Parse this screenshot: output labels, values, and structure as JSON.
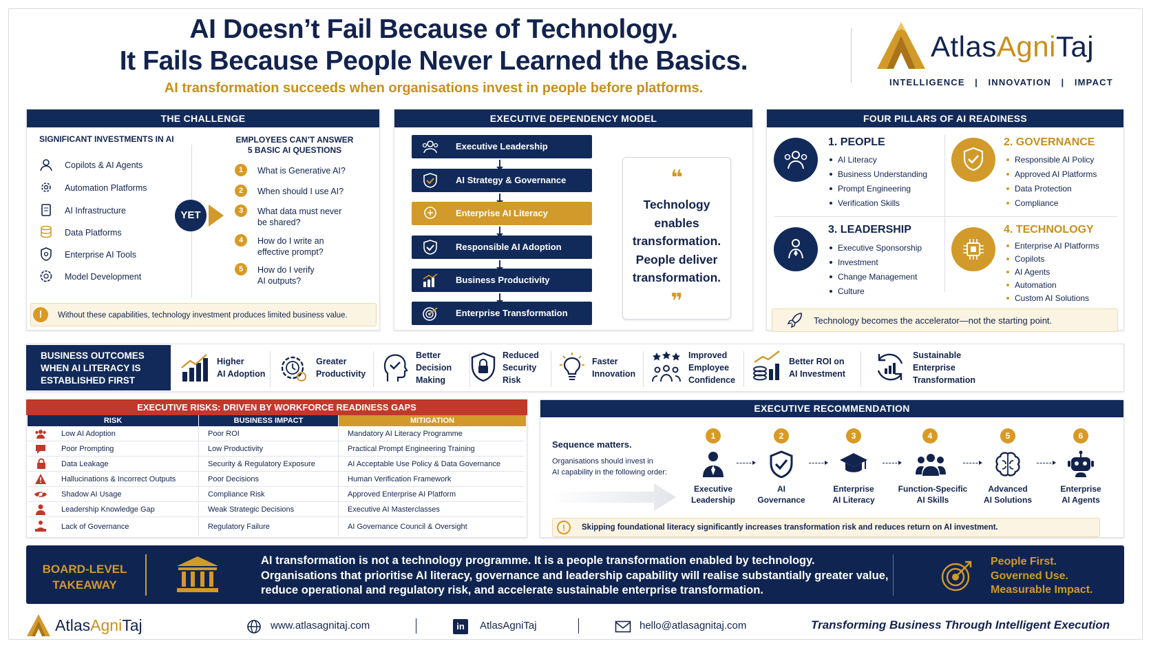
{
  "header": {
    "title_line1": "AI Doesn’t Fail Because of Technology.",
    "title_line2": "It Fails Because People Never Learned the Basics.",
    "subtitle": "AI transformation succeeds when organisations invest in people before platforms.",
    "brand_part1": "Atlas",
    "brand_part2": "Agni",
    "brand_part3": "Taj",
    "tagline": "INTELLIGENCE   |   INNOVATION   |   IMPACT"
  },
  "challenge": {
    "title": "THE CHALLENGE",
    "left_heading": "SIGNIFICANT INVESTMENTS IN AI",
    "investments": [
      {
        "label": "Copilots & AI Agents",
        "icon": "users-gear-icon"
      },
      {
        "label": "Automation Platforms",
        "icon": "gears-icon"
      },
      {
        "label": "AI Infrastructure",
        "icon": "server-icon"
      },
      {
        "label": "Data Platforms",
        "icon": "database-icon"
      },
      {
        "label": "Enterprise AI Tools",
        "icon": "shield-gear-icon"
      },
      {
        "label": "Model Development",
        "icon": "brain-gear-icon"
      }
    ],
    "yet": "YET",
    "right_heading_line1": "EMPLOYEES CAN’T ANSWER",
    "right_heading_line2": "5 BASIC AI QUESTIONS",
    "questions": [
      {
        "n": "1",
        "line1": "What is Generative AI?",
        "line2": ""
      },
      {
        "n": "2",
        "line1": "When should I use AI?",
        "line2": ""
      },
      {
        "n": "3",
        "line1": "What data must never",
        "line2": "be shared?"
      },
      {
        "n": "4",
        "line1": "How do I write an",
        "line2": "effective prompt?"
      },
      {
        "n": "5",
        "line1": "How do I verify",
        "line2": "AI outputs?"
      }
    ],
    "warning": "Without these capabilities, technology investment produces limited business value."
  },
  "dependency": {
    "title": "EXECUTIVE DEPENDENCY MODEL",
    "steps": [
      {
        "label": "Executive Leadership",
        "icon": "people-icon"
      },
      {
        "label": "AI Strategy & Governance",
        "icon": "shield-check-icon"
      },
      {
        "label": "Enterprise AI Literacy",
        "icon": "brain-head-icon"
      },
      {
        "label": "Responsible AI Adoption",
        "icon": "shield-check-icon"
      },
      {
        "label": "Business Productivity",
        "icon": "bar-chart-icon"
      },
      {
        "label": "Enterprise Transformation",
        "icon": "target-icon"
      }
    ],
    "quote_open": "❝",
    "quote_lines": [
      "Technology",
      "enables",
      "transformation.",
      "People deliver",
      "transformation."
    ],
    "quote_close": "❞"
  },
  "pillars": {
    "title": "FOUR PILLARS OF AI READINESS",
    "items": [
      {
        "title": "1. PEOPLE",
        "color": "#12234d",
        "bullets": [
          "AI Literacy",
          "Business Understanding",
          "Prompt Engineering",
          "Verification Skills"
        ]
      },
      {
        "title": "2. GOVERNANCE",
        "color": "#c98f1c",
        "bullets": [
          "Responsible AI Policy",
          "Approved AI Platforms",
          "Data Protection",
          "Compliance"
        ]
      },
      {
        "title": "3. LEADERSHIP",
        "color": "#12234d",
        "bullets": [
          "Executive Sponsorship",
          "Investment",
          "Change Management",
          "Culture"
        ]
      },
      {
        "title": "4. TECHNOLOGY",
        "color": "#c98f1c",
        "bullets": [
          "Enterprise AI Platforms",
          "Copilots",
          "AI Agents",
          "Automation",
          "Custom AI Solutions"
        ]
      }
    ],
    "footer": "Technology becomes the accelerator—not the starting point."
  },
  "outcomes": {
    "label_lines": [
      "BUSINESS OUTCOMES",
      "WHEN AI LITERACY IS",
      "ESTABLISHED FIRST"
    ],
    "items": [
      {
        "lines": [
          "Higher",
          "AI Adoption"
        ],
        "icon": "growth-chart-icon"
      },
      {
        "lines": [
          "Greater",
          "Productivity"
        ],
        "icon": "clock-gear-icon"
      },
      {
        "lines": [
          "Better",
          "Decision",
          "Making"
        ],
        "icon": "head-check-icon"
      },
      {
        "lines": [
          "Reduced",
          "Security",
          "Risk"
        ],
        "icon": "shield-lock-icon"
      },
      {
        "lines": [
          "Faster",
          "Innovation"
        ],
        "icon": "lightbulb-icon"
      },
      {
        "lines": [
          "Improved",
          "Employee",
          "Confidence"
        ],
        "icon": "team-stars-icon"
      },
      {
        "lines": [
          "Better ROI on",
          "AI Investment"
        ],
        "icon": "coins-chart-icon"
      },
      {
        "lines": [
          "Sustainable",
          "Enterprise",
          "Transformation"
        ],
        "icon": "cycle-chart-icon"
      }
    ]
  },
  "risks": {
    "title": "EXECUTIVE RISKS: DRIVEN BY WORKFORCE READINESS GAPS",
    "headers": [
      "RISK",
      "BUSINESS IMPACT",
      "MITIGATION"
    ],
    "rows": [
      {
        "risk": "Low AI Adoption",
        "impact": "Poor ROI",
        "mitigation": "Mandatory AI Literacy Programme",
        "icon": "people-icon"
      },
      {
        "risk": "Poor Prompting",
        "impact": "Low Productivity",
        "mitigation": "Practical Prompt Engineering Training",
        "icon": "chat-icon"
      },
      {
        "risk": "Data Leakage",
        "impact": "Security & Regulatory Exposure",
        "mitigation": "AI Acceptable Use Policy & Data Governance",
        "icon": "lock-icon"
      },
      {
        "risk": "Hallucinations & Incorrect Outputs",
        "impact": "Poor Decisions",
        "mitigation": "Human Verification Framework",
        "icon": "warning-icon"
      },
      {
        "risk": "Shadow AI Usage",
        "impact": "Compliance Risk",
        "mitigation": "Approved Enterprise AI Platform",
        "icon": "eye-icon"
      },
      {
        "risk": "Leadership Knowledge Gap",
        "impact": "Weak Strategic Decisions",
        "mitigation": "Executive AI Masterclasses",
        "icon": "person-icon"
      },
      {
        "risk": "Lack of Governance",
        "impact": "Regulatory Failure",
        "mitigation": "AI Governance Council & Oversight",
        "icon": "hierarchy-icon"
      }
    ]
  },
  "recommendation": {
    "title": "EXECUTIVE RECOMMENDATION",
    "lead": "Sequence matters.",
    "desc_line1": "Organisations should invest in",
    "desc_line2": "AI capability in the following order:",
    "steps": [
      {
        "n": "1",
        "lines": [
          "Executive",
          "Leadership"
        ],
        "icon": "executive-icon"
      },
      {
        "n": "2",
        "lines": [
          "AI",
          "Governance"
        ],
        "icon": "shield-check-icon"
      },
      {
        "n": "3",
        "lines": [
          "Enterprise",
          "AI Literacy"
        ],
        "icon": "graduation-cap-icon"
      },
      {
        "n": "4",
        "lines": [
          "Function-Specific",
          "AI Skills"
        ],
        "icon": "team-icon"
      },
      {
        "n": "5",
        "lines": [
          "Advanced",
          "AI Solutions"
        ],
        "icon": "brain-icon"
      },
      {
        "n": "6",
        "lines": [
          "Enterprise",
          "AI Agents"
        ],
        "icon": "robot-icon"
      }
    ],
    "warning": "Skipping foundational literacy significantly increases transformation risk and reduces return on AI investment."
  },
  "board": {
    "label_line1": "BOARD-LEVEL",
    "label_line2": "TAKEAWAY",
    "text_line1": "AI transformation is not a technology programme. It is a people transformation enabled by technology.",
    "text_line2": "Organisations that prioritise AI literacy, governance and leadership capability will realise substantially greater value,",
    "text_line3": "reduce operational and regulatory risk, and accelerate sustainable enterprise transformation.",
    "slogan_line1": "People First.",
    "slogan_line2": "Governed Use.",
    "slogan_line3": "Measurable Impact."
  },
  "footer": {
    "brand_part1": "Atlas",
    "brand_part2": "Agni",
    "brand_part3": "Taj",
    "website": "www.atlasagnitaj.com",
    "linkedin": "AtlasAgniTaj",
    "email": "hello@atlasagnitaj.com",
    "motto": "Transforming Business Through Intelligent Execution"
  },
  "colors": {
    "navy": "#122a5a",
    "gold": "#d19a2a",
    "red": "#c0392b"
  }
}
